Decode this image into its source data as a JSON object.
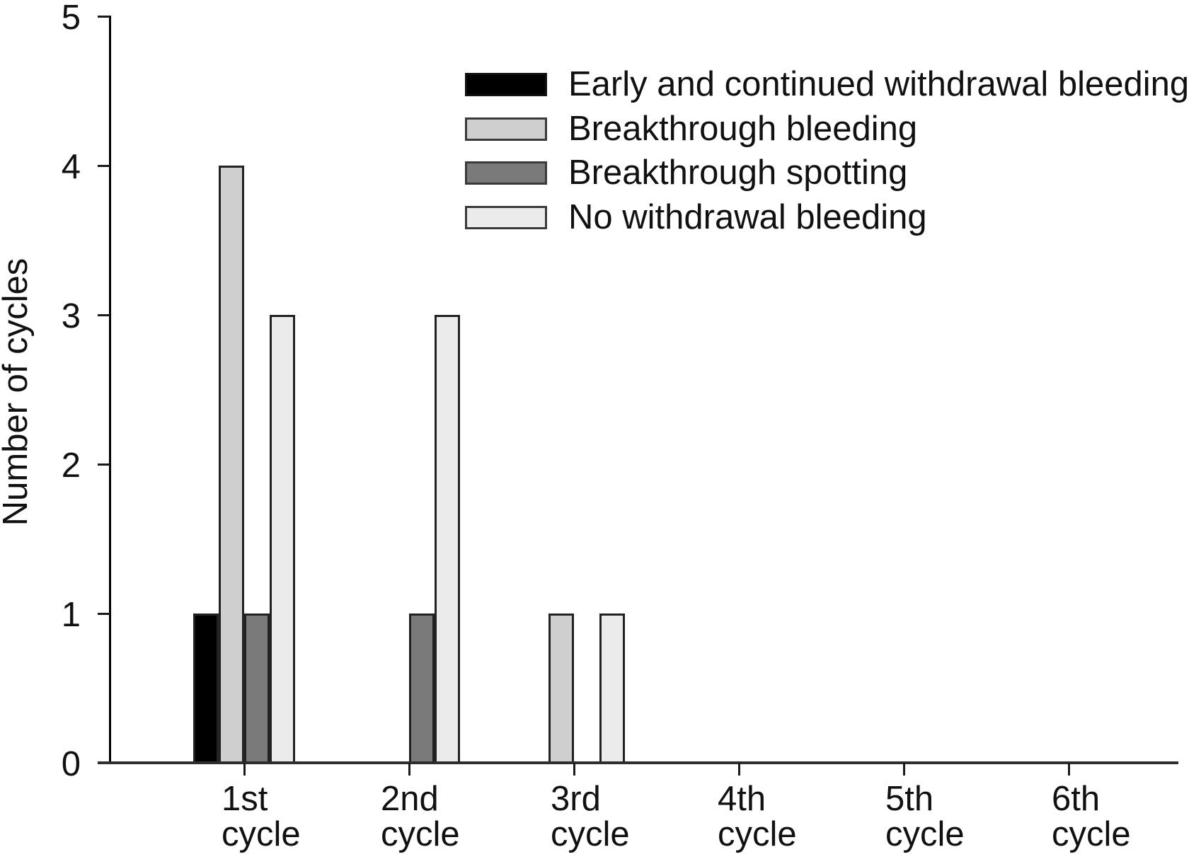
{
  "chart_data": {
    "type": "bar",
    "title": "",
    "xlabel": "",
    "ylabel": "Number of cycles",
    "ylim": [
      0,
      5
    ],
    "yticks": [
      0,
      1,
      2,
      3,
      4,
      5
    ],
    "grid": false,
    "legend_position": "upper right (inside plot)",
    "categories": [
      "1st cycle",
      "2nd cycle",
      "3rd cycle",
      "4th cycle",
      "5th cycle",
      "6th cycle"
    ],
    "category_lines": [
      [
        "1st",
        "cycle"
      ],
      [
        "2nd",
        "cycle"
      ],
      [
        "3rd",
        "cycle"
      ],
      [
        "4th",
        "cycle"
      ],
      [
        "5th",
        "cycle"
      ],
      [
        "6th",
        "cycle"
      ]
    ],
    "series": [
      {
        "name": "Early and continued withdrawal bleeding",
        "color": "#000000",
        "values": [
          1,
          0,
          0,
          0,
          0,
          0
        ]
      },
      {
        "name": "Breakthrough bleeding",
        "color": "#cfcfcf",
        "values": [
          4,
          0,
          1,
          0,
          0,
          0
        ]
      },
      {
        "name": "Breakthrough spotting",
        "color": "#7a7a7a",
        "values": [
          1,
          1,
          0,
          0,
          0,
          0
        ]
      },
      {
        "name": "No withdrawal bleeding",
        "color": "#ebebeb",
        "values": [
          3,
          3,
          1,
          0,
          0,
          0
        ]
      }
    ]
  },
  "axis": {
    "y_title": "Number of cycles",
    "y_tick_labels": [
      "0",
      "1",
      "2",
      "3",
      "4",
      "5"
    ]
  },
  "legend": {
    "items": [
      {
        "label": "Early and continued withdrawal bleeding",
        "color": "#000000"
      },
      {
        "label": "Breakthrough bleeding",
        "color": "#cfcfcf"
      },
      {
        "label": "Breakthrough spotting",
        "color": "#7a7a7a"
      },
      {
        "label": "No withdrawal bleeding",
        "color": "#ebebeb"
      }
    ]
  }
}
